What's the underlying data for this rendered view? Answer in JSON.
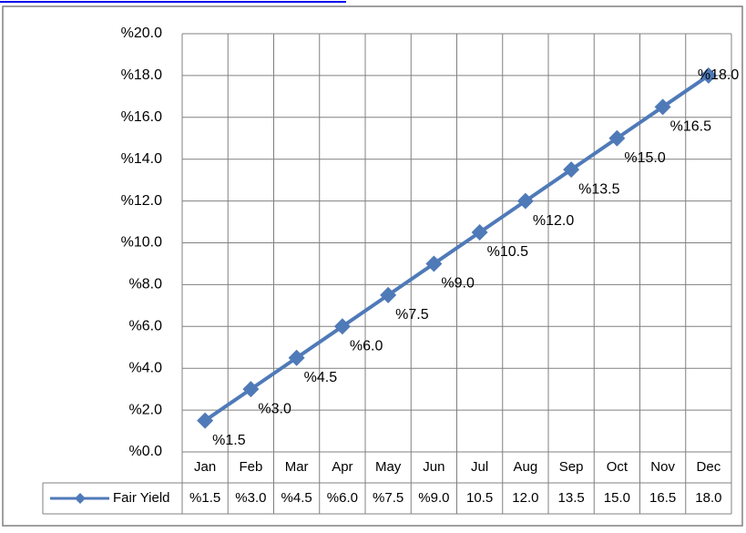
{
  "chart_data": {
    "type": "line",
    "categories": [
      "Jan",
      "Feb",
      "Mar",
      "Apr",
      "May",
      "Jun",
      "Jul",
      "Aug",
      "Sep",
      "Oct",
      "Nov",
      "Dec"
    ],
    "series": [
      {
        "name": "Fair Yield",
        "color": "#4f7ab8",
        "values": [
          1.5,
          3.0,
          4.5,
          6.0,
          7.5,
          9.0,
          10.5,
          12.0,
          13.5,
          15.0,
          16.5,
          18.0
        ],
        "value_labels": [
          "%1.5",
          "%3.0",
          "%4.5",
          "%6.0",
          "%7.5",
          "%9.0",
          "%10.5",
          "%12.0",
          "%13.5",
          "%15.0",
          "%16.5",
          "%18.0"
        ],
        "table_labels": [
          "%1.5",
          "%3.0",
          "%4.5",
          "%6.0",
          "%7.5",
          "%9.0",
          "10.5",
          "12.0",
          "13.5",
          "15.0",
          "16.5",
          "18.0"
        ]
      }
    ],
    "ylim": [
      0,
      20
    ],
    "yticks": [
      {
        "value": 0,
        "label": "%0.0"
      },
      {
        "value": 2,
        "label": "%2.0"
      },
      {
        "value": 4,
        "label": "%4.0"
      },
      {
        "value": 6,
        "label": "%6.0"
      },
      {
        "value": 8,
        "label": "%8.0"
      },
      {
        "value": 10,
        "label": "%10.0"
      },
      {
        "value": 12,
        "label": "%12.0"
      },
      {
        "value": 14,
        "label": "%14.0"
      },
      {
        "value": 16,
        "label": "%16.0"
      },
      {
        "value": 18,
        "label": "%18.0"
      },
      {
        "value": 20,
        "label": "%20.0"
      }
    ],
    "grid": true
  }
}
